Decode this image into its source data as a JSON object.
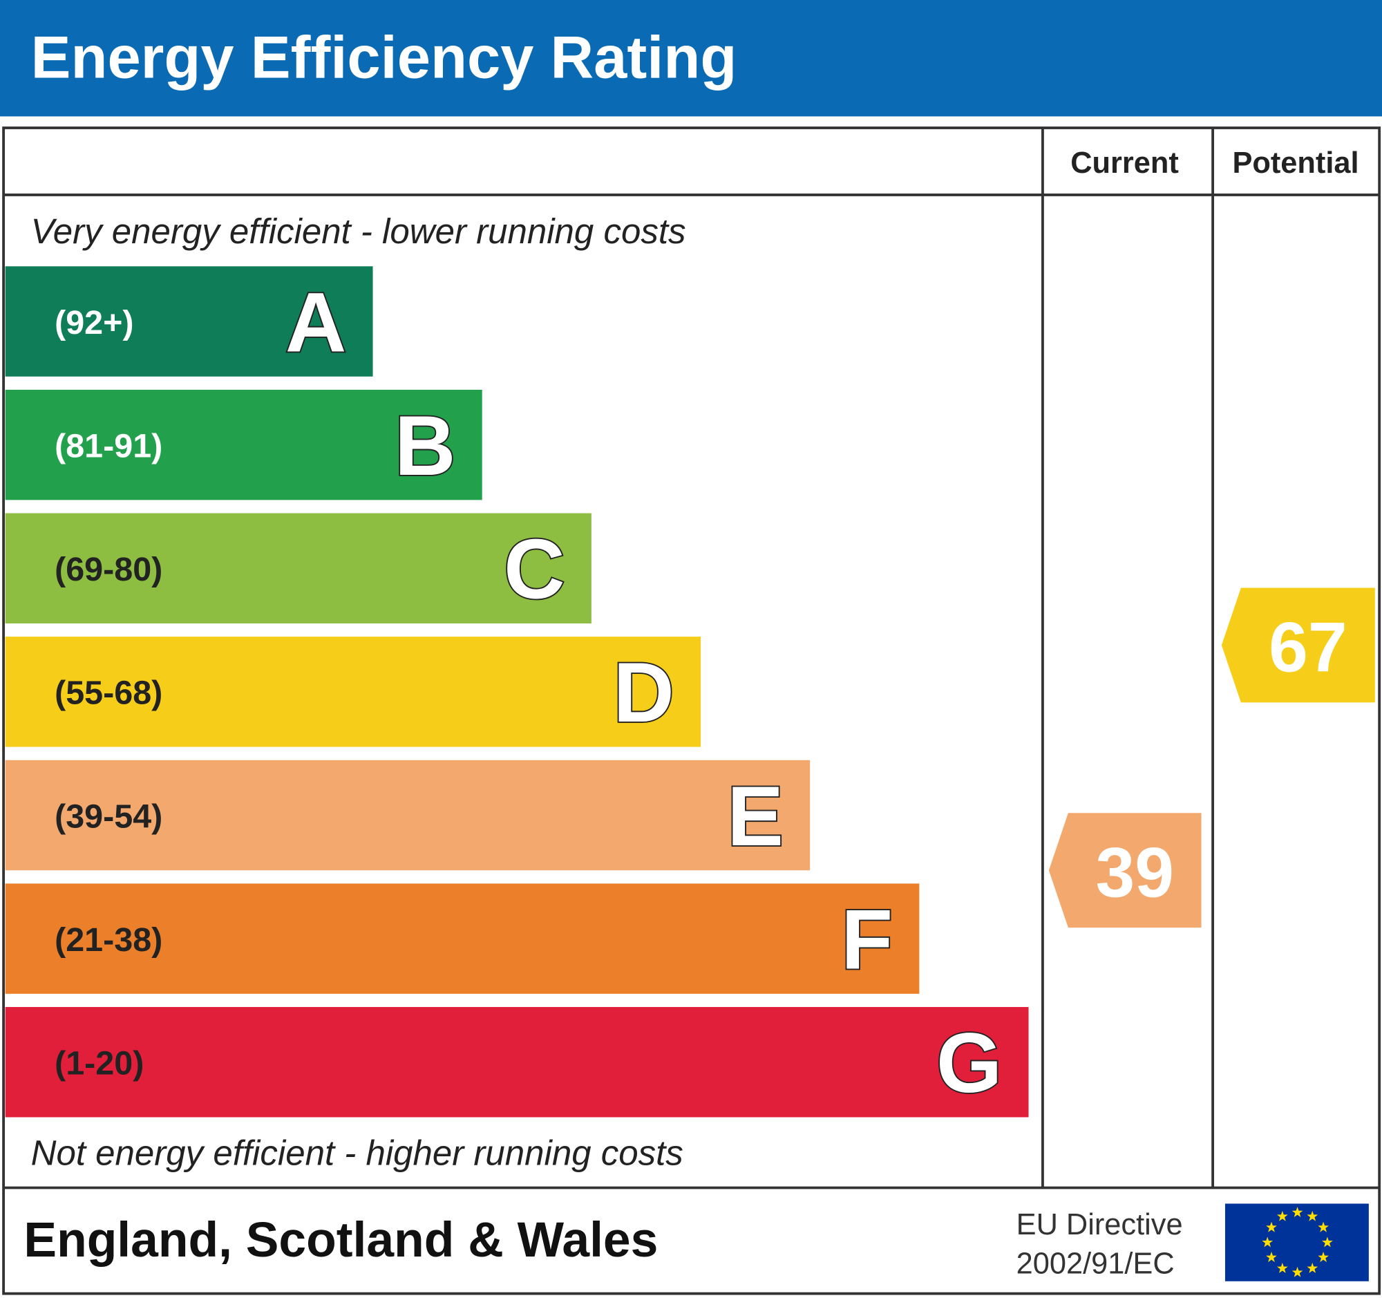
{
  "header": {
    "title": "Energy Efficiency Rating"
  },
  "columns": {
    "current": "Current",
    "potential": "Potential"
  },
  "top_note": "Very energy efficient - lower running costs",
  "bands": [
    {
      "range": "(92+)",
      "letter": "A",
      "color": "#0f7d57",
      "text_color": "#ffffff"
    },
    {
      "range": "(81-91)",
      "letter": "B",
      "color": "#22a04b",
      "text_color": "#ffffff"
    },
    {
      "range": "(69-80)",
      "letter": "C",
      "color": "#8dbe42",
      "text_color": "#222222"
    },
    {
      "range": "(55-68)",
      "letter": "D",
      "color": "#f6cd19",
      "text_color": "#222222"
    },
    {
      "range": "(39-54)",
      "letter": "E",
      "color": "#f3a86e",
      "text_color": "#222222"
    },
    {
      "range": "(21-38)",
      "letter": "F",
      "color": "#ec7f29",
      "text_color": "#222222"
    },
    {
      "range": "(1-20)",
      "letter": "G",
      "color": "#e21f3b",
      "text_color": "#222222"
    }
  ],
  "bottom_note": "Not energy efficient - higher running costs",
  "current": {
    "value": 39
  },
  "potential": {
    "value": 67
  },
  "footer": {
    "region": "England, Scotland & Wales",
    "directive": [
      "EU Directive",
      "2002/91/EC"
    ]
  }
}
